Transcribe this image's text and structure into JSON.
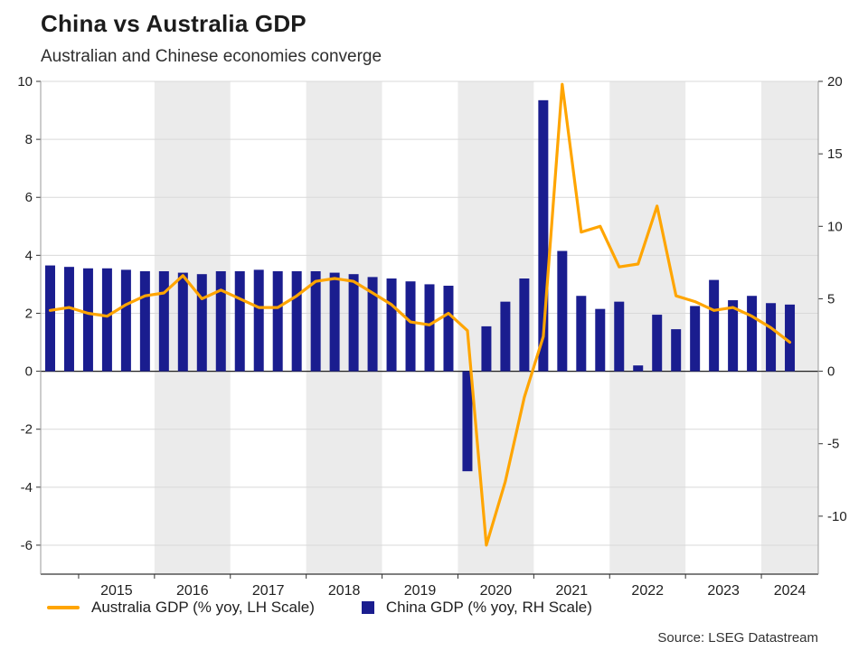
{
  "header": {
    "title": "China vs Australia GDP",
    "subtitle": "Australian and Chinese economies converge"
  },
  "source": "Source: LSEG Datastream",
  "chart_data": {
    "type": "bar",
    "subtype": "combo-bar-line-dual-axis",
    "title": "China vs Australia GDP",
    "subtitle": "Australian and Chinese economies converge",
    "x_start": 2014.5,
    "x_end": 2024.75,
    "x_step": 0.25,
    "x_tick_labels": [
      "2015",
      "2016",
      "2017",
      "2018",
      "2019",
      "2020",
      "2021",
      "2022",
      "2023",
      "2024"
    ],
    "x": [
      "2014 Q3",
      "2014 Q4",
      "2015 Q1",
      "2015 Q2",
      "2015 Q3",
      "2015 Q4",
      "2016 Q1",
      "2016 Q2",
      "2016 Q3",
      "2016 Q4",
      "2017 Q1",
      "2017 Q2",
      "2017 Q3",
      "2017 Q4",
      "2018 Q1",
      "2018 Q2",
      "2018 Q3",
      "2018 Q4",
      "2019 Q1",
      "2019 Q2",
      "2019 Q3",
      "2019 Q4",
      "2020 Q1",
      "2020 Q2",
      "2020 Q3",
      "2020 Q4",
      "2021 Q1",
      "2021 Q2",
      "2021 Q3",
      "2021 Q4",
      "2022 Q1",
      "2022 Q2",
      "2022 Q3",
      "2022 Q4",
      "2023 Q1",
      "2023 Q2",
      "2023 Q3",
      "2023 Q4",
      "2024 Q1",
      "2024 Q2"
    ],
    "left_axis": {
      "ticks": [
        10,
        8,
        6,
        4,
        2,
        0,
        -2,
        -4,
        -6
      ],
      "range": [
        -7,
        10
      ]
    },
    "right_axis": {
      "ticks": [
        20,
        15,
        10,
        5,
        0,
        -5,
        -10
      ],
      "range": [
        -14,
        20
      ]
    },
    "grid": true,
    "band_color": "#ebebeb",
    "grid_color": "#d9d9d9",
    "legend_position": "bottom",
    "series": [
      {
        "name": "Australia GDP (% yoy, LH Scale)",
        "type": "line",
        "axis": "left",
        "color": "#ffa500",
        "values": [
          2.1,
          2.2,
          2.0,
          1.9,
          2.3,
          2.6,
          2.7,
          3.3,
          2.5,
          2.8,
          2.5,
          2.2,
          2.2,
          2.6,
          3.1,
          3.2,
          3.1,
          2.7,
          2.3,
          1.7,
          1.6,
          2.0,
          1.4,
          -6.0,
          -3.8,
          -0.9,
          1.2,
          9.9,
          4.8,
          5.0,
          3.6,
          3.7,
          5.7,
          2.6,
          2.4,
          2.1,
          2.2,
          1.9,
          1.5,
          1.0
        ]
      },
      {
        "name": "China GDP (% yoy, RH Scale)",
        "type": "bar",
        "axis": "right",
        "color": "#1a1d8f",
        "values": [
          7.3,
          7.2,
          7.1,
          7.1,
          7.0,
          6.9,
          6.9,
          6.8,
          6.7,
          6.9,
          6.9,
          7.0,
          6.9,
          6.9,
          6.9,
          6.8,
          6.7,
          6.5,
          6.4,
          6.2,
          6.0,
          5.9,
          -6.9,
          3.1,
          4.8,
          6.4,
          18.7,
          8.3,
          5.2,
          4.3,
          4.8,
          0.4,
          3.9,
          2.9,
          4.5,
          6.3,
          4.9,
          5.2,
          4.7,
          4.6
        ]
      }
    ]
  }
}
